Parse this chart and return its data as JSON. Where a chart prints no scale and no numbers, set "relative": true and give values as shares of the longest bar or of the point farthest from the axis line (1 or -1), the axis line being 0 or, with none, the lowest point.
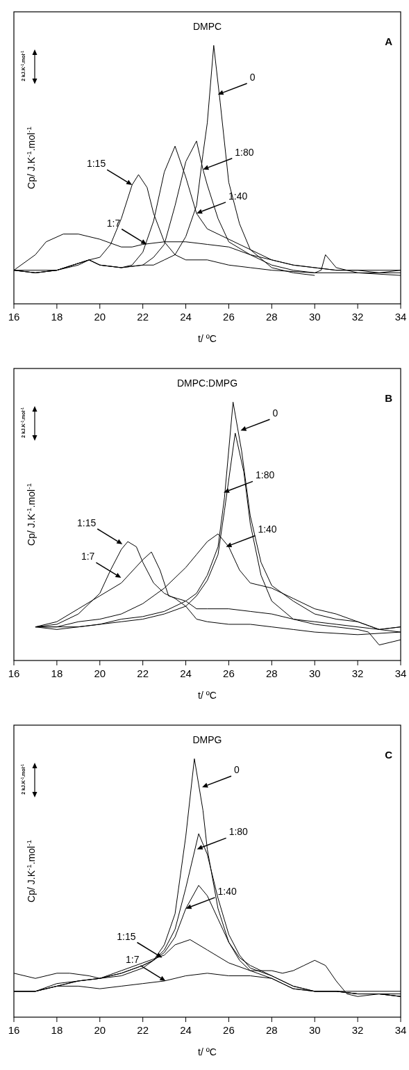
{
  "chart_data": [
    {
      "type": "line",
      "title": "DMPC",
      "xlabel": "t/ ºC",
      "ylabel": "Cp/ J.K$^{-1}$.mol$^{-1}$",
      "relative": true,
      "xlim": [
        16,
        34
      ],
      "xticks": [
        16,
        18,
        20,
        22,
        24,
        26,
        28,
        30,
        32,
        34
      ],
      "annotations": [
        "A",
        "2 kJ.K$^{-1}$.mol$^{-1}$",
        {
          "text": "0",
          "x": 25.49,
          "y": 0.81
        },
        {
          "text": "1:80",
          "x": 24.8,
          "y": 0.52
        },
        {
          "text": "1:40",
          "x": 24.5,
          "y": 0.35
        },
        {
          "text": "1:15",
          "x": 21.5,
          "y": 0.46
        },
        {
          "text": "1:7",
          "x": 22.18,
          "y": 0.23
        }
      ],
      "series": [
        {
          "color": "#000000",
          "x": [
            16,
            17,
            18,
            19,
            19.5,
            20,
            21,
            22,
            22.5,
            23,
            23.5,
            24,
            24.5,
            24.8,
            25,
            25.3,
            25.6,
            26,
            26.5,
            27,
            28,
            29,
            30
          ],
          "values": [
            0.13,
            0.12,
            0.13,
            0.15,
            0.17,
            0.15,
            0.14,
            0.15,
            0.15,
            0.17,
            0.19,
            0.26,
            0.38,
            0.58,
            0.7,
            1,
            0.78,
            0.47,
            0.31,
            0.21,
            0.14,
            0.12,
            0.11
          ]
        },
        {
          "color": "#000000",
          "x": [
            16,
            17,
            18,
            19.5,
            20,
            21,
            22,
            22.5,
            23,
            23.5,
            24,
            24.5,
            24.8,
            25,
            25.5,
            26,
            27,
            28,
            29,
            30,
            30.3,
            30.5,
            31,
            32,
            33,
            34
          ],
          "values": [
            0.13,
            0.12,
            0.13,
            0.17,
            0.15,
            0.14,
            0.15,
            0.18,
            0.23,
            0.38,
            0.55,
            0.63,
            0.52,
            0.46,
            0.33,
            0.24,
            0.19,
            0.15,
            0.13,
            0.12,
            0.13,
            0.19,
            0.14,
            0.12,
            0.12,
            0.13
          ]
        },
        {
          "color": "#000000",
          "x": [
            16,
            17,
            18,
            19.5,
            20,
            21,
            21.5,
            22,
            22.5,
            23,
            23.5,
            24,
            24.5,
            25,
            26,
            27,
            28,
            29,
            30,
            31,
            32,
            33,
            34
          ],
          "values": [
            0.13,
            0.12,
            0.13,
            0.17,
            0.15,
            0.14,
            0.15,
            0.2,
            0.32,
            0.51,
            0.61,
            0.49,
            0.35,
            0.29,
            0.25,
            0.21,
            0.17,
            0.15,
            0.14,
            0.13,
            0.13,
            0.13,
            0.13
          ]
        },
        {
          "color": "#000000",
          "x": [
            16,
            17,
            18,
            19.5,
            20,
            20.5,
            21,
            21.5,
            21.8,
            22.2,
            22.5,
            23,
            23.5,
            24,
            25,
            26,
            27,
            28,
            30,
            32,
            34
          ],
          "values": [
            0.13,
            0.13,
            0.13,
            0.17,
            0.18,
            0.23,
            0.33,
            0.46,
            0.5,
            0.45,
            0.35,
            0.24,
            0.19,
            0.17,
            0.17,
            0.15,
            0.14,
            0.13,
            0.12,
            0.12,
            0.11
          ]
        },
        {
          "color": "#000000",
          "x": [
            16,
            17,
            17.5,
            18.3,
            19,
            20,
            21,
            21.5,
            22,
            23,
            24,
            25,
            26,
            27,
            28,
            29,
            30,
            31,
            32,
            33,
            34
          ],
          "values": [
            0.13,
            0.19,
            0.24,
            0.27,
            0.27,
            0.25,
            0.22,
            0.22,
            0.23,
            0.24,
            0.24,
            0.23,
            0.22,
            0.19,
            0.17,
            0.15,
            0.14,
            0.13,
            0.13,
            0.12,
            0.12
          ]
        }
      ]
    },
    {
      "type": "line",
      "title": "DMPC:DMPG",
      "xlabel": "t/ ºC",
      "ylabel": "Cp/ J.K$^{-1}$.mol$^{-1}$",
      "relative": true,
      "xlim": [
        16,
        34
      ],
      "xticks": [
        16,
        18,
        20,
        22,
        24,
        26,
        28,
        30,
        32,
        34
      ],
      "annotations": [
        "B",
        "2 kJ.K$^{-1}$.mol$^{-1}$",
        {
          "text": "0",
          "x": 26.55,
          "y": 0.89
        },
        {
          "text": "1:80",
          "x": 25.76,
          "y": 0.65
        },
        {
          "text": "1:40",
          "x": 25.87,
          "y": 0.44
        },
        {
          "text": "1:15",
          "x": 21.05,
          "y": 0.45
        },
        {
          "text": "1:7",
          "x": 20.99,
          "y": 0.32
        }
      ],
      "series": [
        {
          "color": "#000000",
          "x": [
            17,
            18,
            19,
            20,
            21,
            22,
            23,
            24,
            24.5,
            25,
            25.5,
            25.8,
            26.2,
            26.6,
            27,
            27.5,
            28,
            29,
            30,
            31,
            32,
            33,
            34
          ],
          "values": [
            0.13,
            0.12,
            0.13,
            0.14,
            0.16,
            0.17,
            0.19,
            0.23,
            0.26,
            0.33,
            0.44,
            0.63,
            1,
            0.81,
            0.56,
            0.38,
            0.29,
            0.23,
            0.18,
            0.16,
            0.15,
            0.12,
            0.13
          ]
        },
        {
          "color": "#000000",
          "x": [
            17,
            18,
            19,
            20,
            21,
            22,
            23,
            24,
            24.5,
            25,
            25.5,
            25.8,
            26.3,
            26.7,
            27,
            27.5,
            28,
            29,
            30,
            31,
            32,
            32.5,
            33,
            34
          ],
          "values": [
            0.13,
            0.13,
            0.13,
            0.14,
            0.15,
            0.16,
            0.18,
            0.21,
            0.25,
            0.31,
            0.41,
            0.58,
            0.88,
            0.73,
            0.53,
            0.33,
            0.23,
            0.16,
            0.14,
            0.13,
            0.12,
            0.11,
            0.06,
            0.08
          ]
        },
        {
          "color": "#000000",
          "x": [
            17,
            18,
            19,
            20,
            21,
            22,
            23,
            24,
            24.5,
            25,
            25.5,
            26,
            26.5,
            27,
            28,
            29,
            30,
            31,
            32,
            33,
            34
          ],
          "values": [
            0.13,
            0.13,
            0.15,
            0.16,
            0.18,
            0.22,
            0.28,
            0.36,
            0.41,
            0.46,
            0.49,
            0.44,
            0.35,
            0.3,
            0.28,
            0.24,
            0.2,
            0.18,
            0.15,
            0.12,
            0.13
          ]
        },
        {
          "color": "#000000",
          "x": [
            17,
            18,
            19,
            20,
            20.5,
            21,
            21.3,
            21.7,
            22,
            22.5,
            23,
            23.5,
            24,
            24.5,
            25,
            26,
            27,
            28,
            29,
            30,
            32,
            34
          ],
          "values": [
            0.13,
            0.14,
            0.18,
            0.26,
            0.35,
            0.43,
            0.46,
            0.44,
            0.38,
            0.3,
            0.26,
            0.24,
            0.21,
            0.16,
            0.15,
            0.14,
            0.14,
            0.13,
            0.12,
            0.11,
            0.1,
            0.11
          ]
        },
        {
          "color": "#000000",
          "x": [
            17,
            18,
            19,
            20,
            21,
            22,
            22.4,
            22.8,
            23.2,
            23.6,
            24,
            24.5,
            25,
            26,
            27,
            28,
            29,
            30,
            31,
            32,
            33,
            34
          ],
          "values": [
            0.13,
            0.15,
            0.2,
            0.25,
            0.3,
            0.39,
            0.42,
            0.35,
            0.25,
            0.24,
            0.23,
            0.2,
            0.2,
            0.2,
            0.19,
            0.18,
            0.16,
            0.15,
            0.14,
            0.13,
            0.12,
            0.11
          ]
        }
      ]
    },
    {
      "type": "line",
      "title": "DMPG",
      "xlabel": "t/ ºC",
      "ylabel": "Cp/ J.K$^{-1}$.mol$^{-1}$",
      "relative": true,
      "xlim": [
        16,
        34
      ],
      "xticks": [
        16,
        18,
        20,
        22,
        24,
        26,
        28,
        30,
        32,
        34
      ],
      "annotations": [
        "C",
        "2 kJ.K$^{-1}$.mol$^{-1}$",
        {
          "text": "0",
          "x": 24.76,
          "y": 0.89
        },
        {
          "text": "1:80",
          "x": 24.52,
          "y": 0.65
        },
        {
          "text": "1:40",
          "x": 24,
          "y": 0.42
        },
        {
          "text": "1:15",
          "x": 22.9,
          "y": 0.23
        },
        {
          "text": "1:7",
          "x": 23.06,
          "y": 0.14
        }
      ],
      "series": [
        {
          "color": "#000000",
          "x": [
            16,
            17,
            18,
            19,
            20,
            21,
            22,
            22.5,
            23,
            23.5,
            24,
            24.4,
            24.8,
            25,
            25.5,
            26,
            26.5,
            27,
            28,
            29,
            30,
            31,
            32,
            33,
            34
          ],
          "values": [
            0.1,
            0.1,
            0.12,
            0.14,
            0.15,
            0.16,
            0.19,
            0.22,
            0.28,
            0.4,
            0.7,
            1,
            0.8,
            0.65,
            0.42,
            0.29,
            0.23,
            0.2,
            0.16,
            0.12,
            0.1,
            0.1,
            0.09,
            0.09,
            0.08
          ]
        },
        {
          "color": "#000000",
          "x": [
            16,
            17,
            18,
            19,
            20,
            21,
            22,
            22.5,
            23,
            23.5,
            24,
            24.6,
            25,
            25.5,
            26,
            26.5,
            27,
            28,
            29,
            30,
            31,
            32,
            33,
            34
          ],
          "values": [
            0.1,
            0.1,
            0.13,
            0.14,
            0.15,
            0.17,
            0.2,
            0.22,
            0.26,
            0.34,
            0.5,
            0.71,
            0.63,
            0.46,
            0.32,
            0.24,
            0.19,
            0.16,
            0.12,
            0.1,
            0.1,
            0.09,
            0.09,
            0.09
          ]
        },
        {
          "color": "#000000",
          "x": [
            16,
            17,
            18,
            19,
            20,
            21,
            22,
            22.5,
            23,
            23.5,
            24,
            24.6,
            25,
            25.5,
            26,
            26.5,
            27,
            28,
            29,
            30,
            31,
            32,
            33,
            34
          ],
          "values": [
            0.1,
            0.1,
            0.12,
            0.14,
            0.15,
            0.17,
            0.2,
            0.22,
            0.25,
            0.31,
            0.42,
            0.51,
            0.47,
            0.38,
            0.29,
            0.22,
            0.18,
            0.15,
            0.11,
            0.1,
            0.1,
            0.09,
            0.09,
            0.08
          ]
        },
        {
          "color": "#000000",
          "x": [
            16,
            17,
            18,
            18.6,
            19.5,
            20,
            21,
            22,
            23,
            23.5,
            24.2,
            25,
            26,
            27,
            28,
            28.5,
            29,
            29.5,
            30,
            30.5,
            31,
            31.5,
            32,
            33,
            34
          ],
          "values": [
            0.17,
            0.15,
            0.17,
            0.17,
            0.16,
            0.15,
            0.18,
            0.21,
            0.24,
            0.28,
            0.3,
            0.26,
            0.21,
            0.18,
            0.18,
            0.17,
            0.18,
            0.2,
            0.22,
            0.2,
            0.14,
            0.09,
            0.08,
            0.09,
            0.08
          ]
        },
        {
          "color": "#000000",
          "x": [
            16,
            17,
            18,
            19,
            20,
            21,
            22,
            23,
            24,
            25,
            26,
            27,
            28,
            29,
            30,
            31,
            32,
            33,
            34
          ],
          "values": [
            0.1,
            0.1,
            0.12,
            0.12,
            0.11,
            0.12,
            0.13,
            0.14,
            0.16,
            0.17,
            0.16,
            0.16,
            0.15,
            0.11,
            0.1,
            0.1,
            0.1,
            0.1,
            0.1
          ]
        }
      ]
    }
  ]
}
